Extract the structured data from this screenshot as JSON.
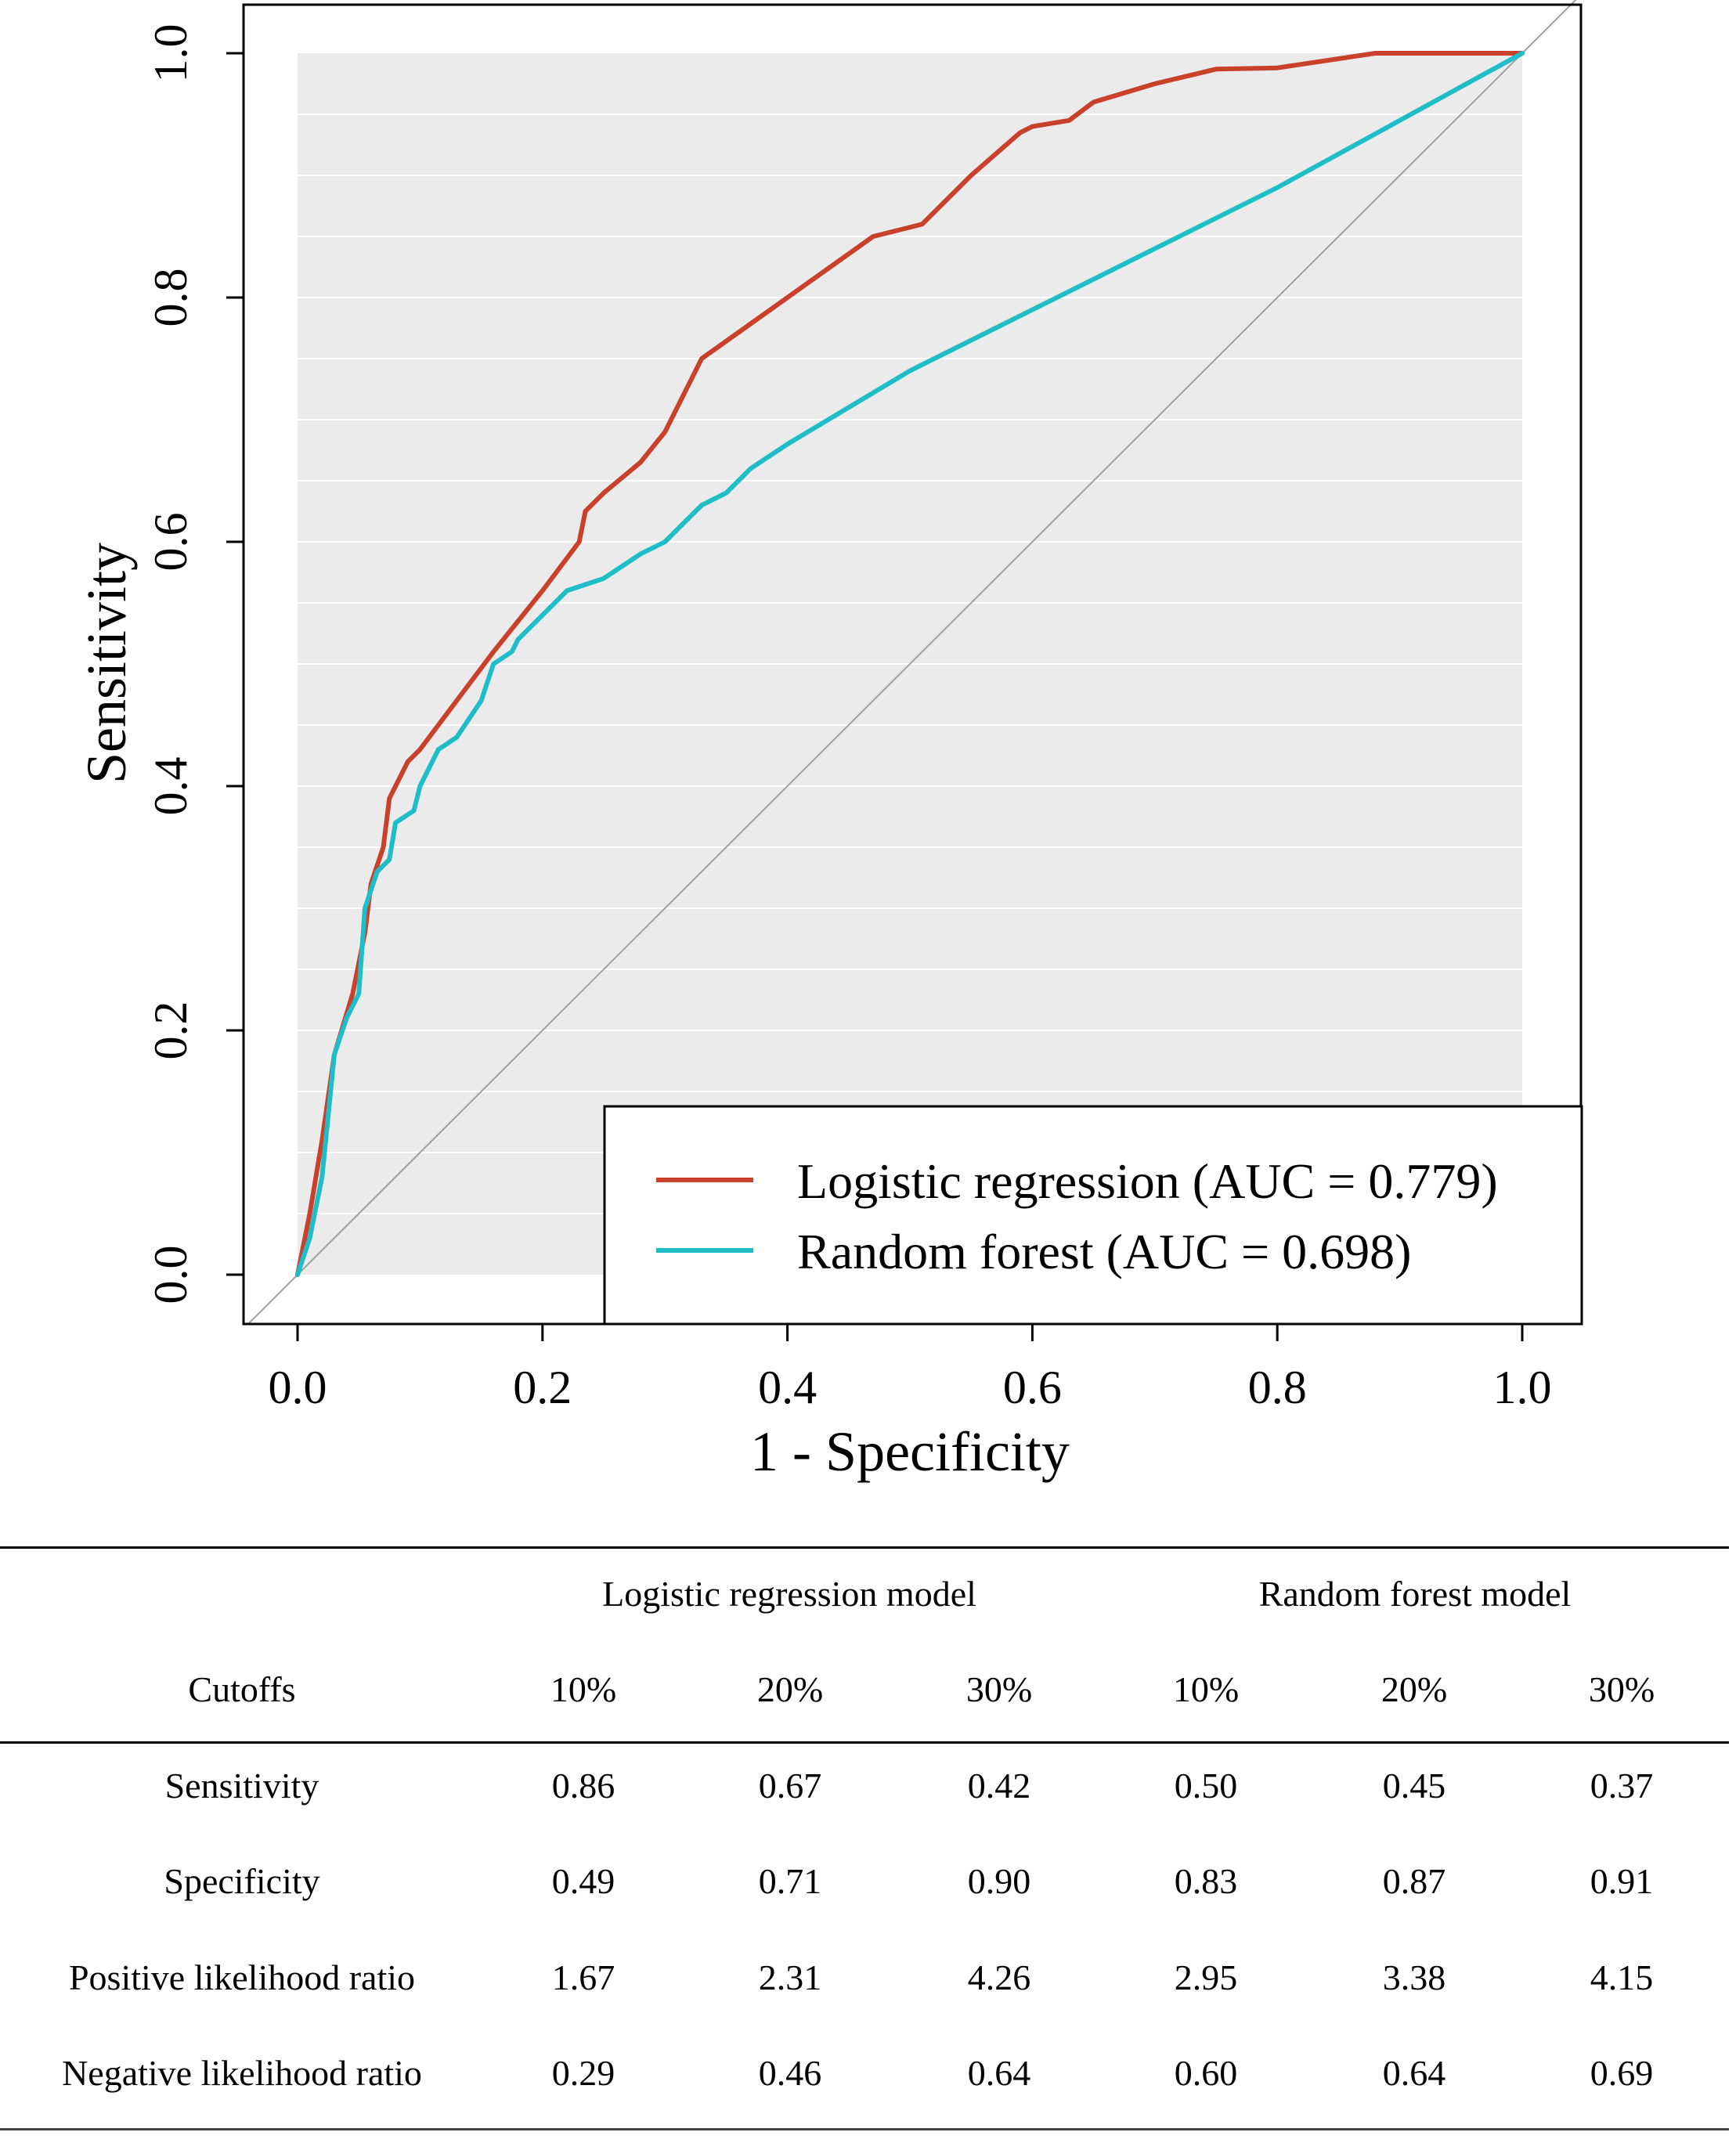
{
  "chart_data": {
    "type": "line",
    "xlabel": "1 - Specificity",
    "ylabel": "Sensitivity",
    "xlim": [
      0,
      1
    ],
    "ylim": [
      0,
      1
    ],
    "x_ticks": [
      "0.0",
      "0.2",
      "0.4",
      "0.6",
      "0.8",
      "1.0"
    ],
    "y_ticks": [
      "0.0",
      "0.2",
      "0.4",
      "0.6",
      "0.8",
      "1.0"
    ],
    "grid": true,
    "legend_position": "bottom-right",
    "reference_line": {
      "from": [
        0,
        0
      ],
      "to": [
        1,
        1
      ]
    },
    "series": [
      {
        "name": "Logistic regression (AUC = 0.779)",
        "color": "#c9412b",
        "points": [
          [
            0,
            0
          ],
          [
            0.01,
            0.05
          ],
          [
            0.02,
            0.11
          ],
          [
            0.03,
            0.18
          ],
          [
            0.045,
            0.23
          ],
          [
            0.055,
            0.28
          ],
          [
            0.06,
            0.32
          ],
          [
            0.07,
            0.35
          ],
          [
            0.075,
            0.39
          ],
          [
            0.09,
            0.42
          ],
          [
            0.1,
            0.43
          ],
          [
            0.13,
            0.47
          ],
          [
            0.16,
            0.51
          ],
          [
            0.2,
            0.56
          ],
          [
            0.23,
            0.6
          ],
          [
            0.235,
            0.625
          ],
          [
            0.25,
            0.64
          ],
          [
            0.28,
            0.665
          ],
          [
            0.3,
            0.69
          ],
          [
            0.32,
            0.73
          ],
          [
            0.33,
            0.75
          ],
          [
            0.4,
            0.8
          ],
          [
            0.47,
            0.85
          ],
          [
            0.51,
            0.86
          ],
          [
            0.55,
            0.9
          ],
          [
            0.59,
            0.935
          ],
          [
            0.6,
            0.94
          ],
          [
            0.63,
            0.945
          ],
          [
            0.65,
            0.96
          ],
          [
            0.7,
            0.975
          ],
          [
            0.75,
            0.987
          ],
          [
            0.8,
            0.988
          ],
          [
            0.88,
            1.0
          ],
          [
            1,
            1
          ]
        ]
      },
      {
        "name": "Random forest (AUC = 0.698)",
        "color": "#1fbdc7",
        "points": [
          [
            0,
            0
          ],
          [
            0.01,
            0.03
          ],
          [
            0.02,
            0.08
          ],
          [
            0.025,
            0.13
          ],
          [
            0.03,
            0.18
          ],
          [
            0.04,
            0.21
          ],
          [
            0.05,
            0.23
          ],
          [
            0.055,
            0.3
          ],
          [
            0.065,
            0.33
          ],
          [
            0.075,
            0.34
          ],
          [
            0.08,
            0.37
          ],
          [
            0.095,
            0.38
          ],
          [
            0.1,
            0.4
          ],
          [
            0.115,
            0.43
          ],
          [
            0.13,
            0.44
          ],
          [
            0.15,
            0.47
          ],
          [
            0.16,
            0.5
          ],
          [
            0.175,
            0.51
          ],
          [
            0.18,
            0.52
          ],
          [
            0.2,
            0.54
          ],
          [
            0.22,
            0.56
          ],
          [
            0.25,
            0.57
          ],
          [
            0.28,
            0.59
          ],
          [
            0.3,
            0.6
          ],
          [
            0.33,
            0.63
          ],
          [
            0.35,
            0.64
          ],
          [
            0.37,
            0.66
          ],
          [
            0.4,
            0.68
          ],
          [
            0.5,
            0.74
          ],
          [
            0.6,
            0.79
          ],
          [
            0.7,
            0.84
          ],
          [
            0.8,
            0.89
          ],
          [
            0.9,
            0.945
          ],
          [
            1,
            1
          ]
        ]
      }
    ]
  },
  "table": {
    "group_headers": [
      "Logistic regression model",
      "Random forest model"
    ],
    "cutoff_label": "Cutoffs",
    "cutoffs": [
      "10%",
      "20%",
      "30%",
      "10%",
      "20%",
      "30%"
    ],
    "rows": [
      {
        "label": "Sensitivity",
        "values": [
          "0.86",
          "0.67",
          "0.42",
          "0.50",
          "0.45",
          "0.37"
        ]
      },
      {
        "label": "Specificity",
        "values": [
          "0.49",
          "0.71",
          "0.90",
          "0.83",
          "0.87",
          "0.91"
        ]
      },
      {
        "label": "Positive likelihood ratio",
        "values": [
          "1.67",
          "2.31",
          "4.26",
          "2.95",
          "3.38",
          "4.15"
        ]
      },
      {
        "label": "Negative likelihood ratio",
        "values": [
          "0.29",
          "0.46",
          "0.64",
          "0.60",
          "0.64",
          "0.69"
        ]
      }
    ]
  }
}
